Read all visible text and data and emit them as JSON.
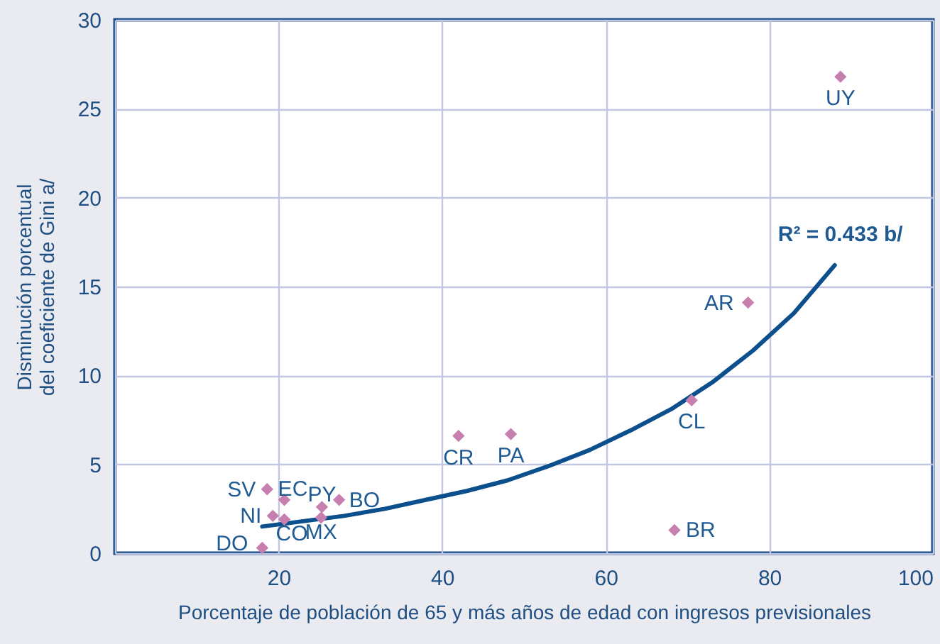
{
  "chart_data": {
    "type": "scatter",
    "xlabel": "Porcentaje de población de 65 y más años de edad con ingresos previsionales",
    "ylabel": "Disminución porcentual\ndel coeficiente de Gini a/",
    "xlim": [
      0,
      100
    ],
    "xticks": [
      {
        "value": 0,
        "label": null
      },
      20,
      40,
      60,
      80,
      100
    ],
    "ylim": [
      0,
      30
    ],
    "yticks": [
      0,
      5,
      10,
      15,
      20,
      25,
      30
    ],
    "grid": true,
    "series": [
      {
        "type": "line",
        "color": "#0b4f8c",
        "x": [
          18,
          23,
          28,
          33,
          38,
          43,
          48,
          53,
          58,
          63,
          68,
          73,
          78,
          83,
          88
        ],
        "values": [
          1.5,
          1.8,
          2.1,
          2.5,
          3.0,
          3.5,
          4.1,
          4.9,
          5.8,
          6.9,
          8.1,
          9.6,
          11.4,
          13.5,
          16.2
        ]
      },
      {
        "marker": "diamond",
        "color": "#c77fb0",
        "x": [
          88.7,
          77.4,
          70.5,
          68.4,
          42.0,
          48.4,
          18.6,
          20.7,
          19.3,
          20.7,
          25.3,
          27.4,
          25.2,
          18.0
        ],
        "values": [
          26.8,
          14.1,
          8.6,
          1.3,
          6.6,
          6.7,
          3.6,
          3.0,
          2.1,
          1.9,
          2.6,
          3.0,
          2.0,
          0.3
        ]
      }
    ],
    "annotations": [
      {
        "text": "UY",
        "x": 88.7,
        "y": 26.8
      },
      {
        "text": "AR",
        "x": 77.4,
        "y": 14.1
      },
      {
        "text": "CL",
        "x": 70.5,
        "y": 8.6
      },
      {
        "text": "BR",
        "x": 68.4,
        "y": 1.3
      },
      {
        "text": "CR",
        "x": 42.0,
        "y": 6.6
      },
      {
        "text": "PA",
        "x": 48.4,
        "y": 6.7
      },
      {
        "text": "SV",
        "x": 18.6,
        "y": 3.6
      },
      {
        "text": "EC",
        "x": 20.7,
        "y": 3.0
      },
      {
        "text": "NI",
        "x": 19.3,
        "y": 2.1
      },
      {
        "text": "CO",
        "x": 20.7,
        "y": 1.9
      },
      {
        "text": "PY",
        "x": 25.3,
        "y": 2.6
      },
      {
        "text": "BO",
        "x": 27.4,
        "y": 3.0
      },
      {
        "text": "MX",
        "x": 25.2,
        "y": 2.0
      },
      {
        "text": "DO",
        "x": 18.0,
        "y": 0.3
      },
      {
        "text": "R² = 0.433 b/",
        "x": 88,
        "y": 16.2
      }
    ]
  }
}
